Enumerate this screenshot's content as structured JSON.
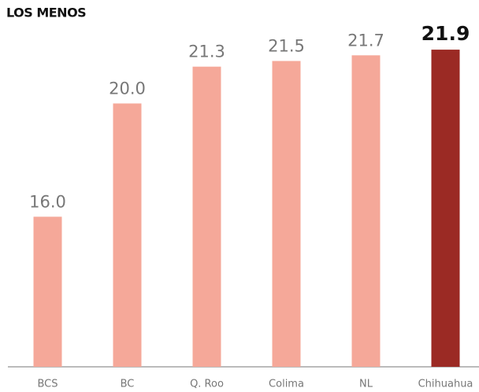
{
  "chart_data": {
    "type": "bar",
    "title": "LOS MENOS",
    "categories": [
      "BCS",
      "BC",
      "Q. Roo",
      "Colima",
      "NL",
      "Chihuahua"
    ],
    "values": [
      16.0,
      20.0,
      21.3,
      21.5,
      21.7,
      21.9
    ],
    "value_labels": [
      "16.0",
      "20.0",
      "21.3",
      "21.5",
      "21.7",
      "21.9"
    ],
    "colors": [
      "#f5a899",
      "#f5a899",
      "#f5a899",
      "#f5a899",
      "#f5a899",
      "#9b2a24"
    ],
    "highlight_color": "#9b2a24",
    "ylim": [
      10.7,
      22.5
    ]
  }
}
